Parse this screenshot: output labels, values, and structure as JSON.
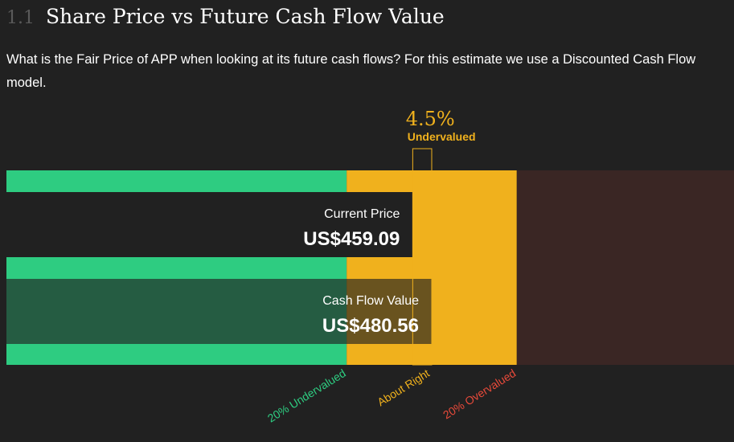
{
  "header": {
    "section_number": "1.1",
    "title": "Share Price vs Future Cash Flow Value"
  },
  "subtitle": "What is the Fair Price of APP when looking at its future cash flows? For this estimate we use a Discounted Cash Flow model.",
  "chart_data": {
    "type": "bar",
    "valuation": {
      "percent_label": "4.5%",
      "status_label": "Undervalued",
      "percent": 4.5
    },
    "bars": [
      {
        "label": "Current Price",
        "value_text": "US$459.09",
        "value": 459.09
      },
      {
        "label": "Cash Flow Value",
        "value_text": "US$480.56",
        "value": 480.56
      }
    ],
    "zones": [
      {
        "label": "20% Undervalued",
        "color": "#2ecc81"
      },
      {
        "label": "About Right",
        "color": "#f0b11d"
      },
      {
        "label": "20% Overvalued",
        "color": "#e84a3a"
      }
    ],
    "colors": {
      "undervalued_zone": "#2ecc81",
      "about_right_zone": "#f0b11d",
      "overvalued_zone": "#3a2624",
      "current_price_bar": "#212121",
      "cash_flow_bar": "rgba(33,33,33,0.65)",
      "accent": "#f0b11d"
    }
  }
}
